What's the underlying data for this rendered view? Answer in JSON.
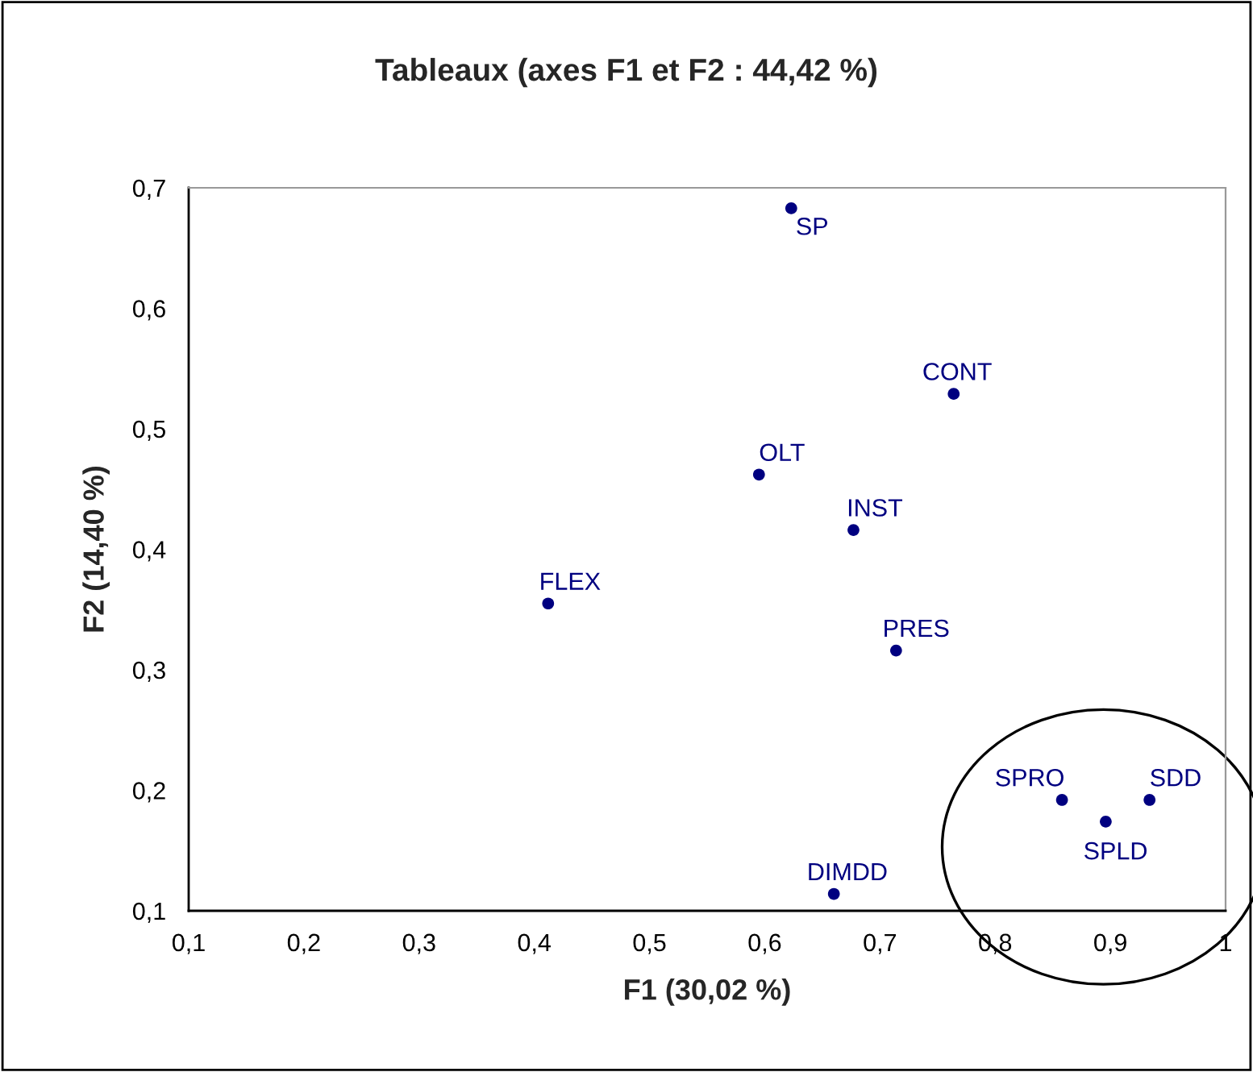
{
  "chart_data": {
    "type": "scatter",
    "title": "Tableaux (axes F1 et F2 : 44,42 %)",
    "xlabel": "F1 (30,02 %)",
    "ylabel": "F2 (14,40 %)",
    "series": [
      {
        "color": "#000080",
        "x": [
          0.623,
          0.764,
          0.595,
          0.677,
          0.412,
          0.714,
          0.858,
          0.934,
          0.896,
          0.66
        ],
        "values": [
          0.683,
          0.529,
          0.462,
          0.416,
          0.355,
          0.316,
          0.192,
          0.192,
          0.174,
          0.114
        ]
      }
    ],
    "annotations": [
      {
        "text": "SP",
        "x": 0.623,
        "y": 0.683
      },
      {
        "text": "CONT",
        "x": 0.764,
        "y": 0.529
      },
      {
        "text": "OLT",
        "x": 0.595,
        "y": 0.462
      },
      {
        "text": "INST",
        "x": 0.677,
        "y": 0.416
      },
      {
        "text": "FLEX",
        "x": 0.412,
        "y": 0.355
      },
      {
        "text": "PRES",
        "x": 0.714,
        "y": 0.316
      },
      {
        "text": "SPRO",
        "x": 0.858,
        "y": 0.192
      },
      {
        "text": "SDD",
        "x": 0.934,
        "y": 0.192
      },
      {
        "text": "SPLD",
        "x": 0.896,
        "y": 0.174
      },
      {
        "text": "DIMDD",
        "x": 0.66,
        "y": 0.114
      }
    ],
    "xlim": [
      0.1,
      1.0
    ],
    "ylim": [
      0.1,
      0.7
    ],
    "xticks": [
      {
        "value": 0.1,
        "label": "0,1"
      },
      {
        "value": 0.2,
        "label": "0,2"
      },
      {
        "value": 0.3,
        "label": "0,3"
      },
      {
        "value": 0.4,
        "label": "0,4"
      },
      {
        "value": 0.5,
        "label": "0,5"
      },
      {
        "value": 0.6,
        "label": "0,6"
      },
      {
        "value": 0.7,
        "label": "0,7"
      },
      {
        "value": 0.8,
        "label": "0,8"
      },
      {
        "value": 0.9,
        "label": "0,9"
      },
      1
    ],
    "yticks": [
      {
        "value": 0.1,
        "label": "0,1"
      },
      {
        "value": 0.2,
        "label": "0,2"
      },
      {
        "value": 0.3,
        "label": "0,3"
      },
      {
        "value": 0.4,
        "label": "0,4"
      },
      {
        "value": 0.5,
        "label": "0,5"
      },
      {
        "value": 0.6,
        "label": "0,6"
      },
      {
        "value": 0.7,
        "label": "0,7"
      }
    ],
    "marker": "circle",
    "grid": false,
    "legend": false
  }
}
